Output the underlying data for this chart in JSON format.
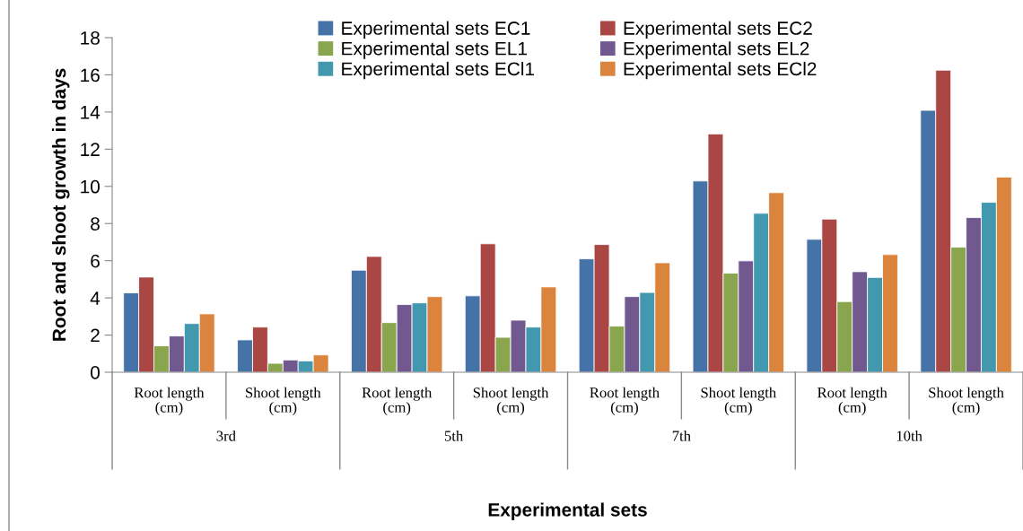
{
  "chart_data": {
    "type": "bar",
    "xlabel": "Experimental sets",
    "ylabel": "Root and shoot growth in days",
    "categories": [
      "Root length\n(cm)",
      "Shoot length\n(cm)",
      "Root length\n(cm)",
      "Shoot length\n(cm)",
      "Root length\n(cm)",
      "Shoot length\n(cm)",
      "Root length\n(cm)",
      "Shoot length\n(cm)"
    ],
    "series": [
      {
        "name": "Experimental sets EC1",
        "color": "#4572a7",
        "values": [
          4.27,
          1.74,
          5.49,
          4.11,
          6.1,
          10.29,
          7.15,
          14.09
        ]
      },
      {
        "name": "Experimental sets EC2",
        "color": "#aa4643",
        "values": [
          5.12,
          2.43,
          6.23,
          6.91,
          6.87,
          12.82,
          8.24,
          16.25
        ]
      },
      {
        "name": "Experimental sets EL1",
        "color": "#89a54e",
        "values": [
          1.42,
          0.48,
          2.67,
          1.88,
          2.48,
          5.33,
          3.8,
          6.73
        ]
      },
      {
        "name": "Experimental sets EL2",
        "color": "#71588f",
        "values": [
          1.95,
          0.66,
          3.64,
          2.8,
          4.07,
          5.99,
          5.41,
          8.32
        ]
      },
      {
        "name": "Experimental sets ECl1",
        "color": "#4198af",
        "values": [
          2.62,
          0.61,
          3.73,
          2.43,
          4.29,
          8.55,
          5.1,
          9.14
        ]
      },
      {
        "name": "Experimental sets ECl2",
        "color": "#db843d",
        "values": [
          3.14,
          0.93,
          4.07,
          4.59,
          5.89,
          9.66,
          6.33,
          10.5
        ]
      }
    ],
    "annotations": [
      "3rd",
      "5th",
      "7th",
      "10th"
    ],
    "ylim": [
      0,
      18
    ],
    "yticks": [
      0,
      2,
      4,
      6,
      8,
      10,
      12,
      14,
      16,
      18
    ],
    "grid": false,
    "legend": "top"
  }
}
